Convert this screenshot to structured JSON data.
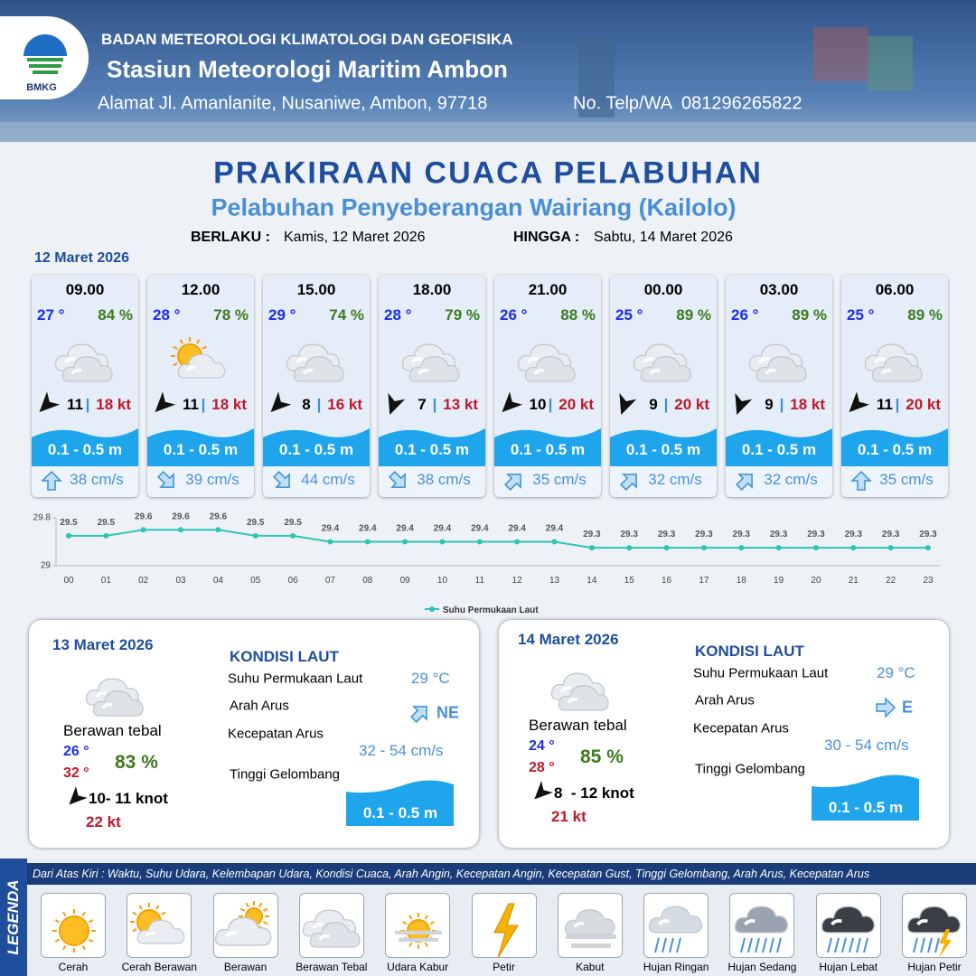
{
  "header": {
    "logo_text": "BMKG",
    "agency": "BADAN METEOROLOGI KLIMATOLOGI DAN GEOFISIKA",
    "station": "Stasiun Meteorologi Maritim Ambon",
    "address": "Alamat Jl. Amanlanite, Nusaniwe, Ambon, 97718",
    "phone": "No. Telp/WA  081296265822"
  },
  "title": "PRAKIRAAN CUACA PELABUHAN",
  "subtitle": "Pelabuhan Penyeberangan Wairiang (Kailolo)",
  "validity": {
    "from_label": "BERLAKU :",
    "from": "Kamis, 12 Maret 2026",
    "to_label": "HINGGA :",
    "to": "Sabtu, 14 Maret 2026"
  },
  "day1_date": "12 Maret 2026",
  "cards": [
    {
      "time": "09.00",
      "temp": "27 °",
      "humidity": "84 %",
      "wind": "11",
      "separator": "|",
      "gust": "18 kt",
      "wave": "0.1 - 0.5 m",
      "current": "38 cm/s"
    },
    {
      "time": "12.00",
      "temp": "28 °",
      "humidity": "78 %",
      "wind": "11",
      "separator": "|",
      "gust": "18 kt",
      "wave": "0.1 - 0.5 m",
      "current": "39 cm/s"
    },
    {
      "time": "15.00",
      "temp": "29 °",
      "humidity": "74 %",
      "wind": "8",
      "separator": "|",
      "gust": "16 kt",
      "wave": "0.1 - 0.5 m",
      "current": "44 cm/s"
    },
    {
      "time": "18.00",
      "temp": "28 °",
      "humidity": "79 %",
      "wind": "7",
      "separator": "|",
      "gust": "13 kt",
      "wave": "0.1 - 0.5 m",
      "current": "38 cm/s"
    },
    {
      "time": "21.00",
      "temp": "26 °",
      "humidity": "88 %",
      "wind": "10",
      "separator": "|",
      "gust": "20 kt",
      "wave": "0.1 - 0.5 m",
      "current": "35 cm/s"
    },
    {
      "time": "00.00",
      "temp": "25 °",
      "humidity": "89 %",
      "wind": "9",
      "separator": "|",
      "gust": "20 kt",
      "wave": "0.1 - 0.5 m",
      "current": "32 cm/s"
    },
    {
      "time": "03.00",
      "temp": "26 °",
      "humidity": "89 %",
      "wind": "9",
      "separator": "|",
      "gust": "18 kt",
      "wave": "0.1 - 0.5 m",
      "current": "32 cm/s"
    },
    {
      "time": "06.00",
      "temp": "25 °",
      "humidity": "89 %",
      "wind": "11",
      "separator": "|",
      "gust": "20 kt",
      "wave": "0.1 - 0.5 m",
      "current": "35 cm/s"
    }
  ],
  "sst_chart": {
    "type": "line",
    "categories": [
      "00",
      "01",
      "02",
      "03",
      "04",
      "05",
      "06",
      "07",
      "08",
      "09",
      "10",
      "11",
      "12",
      "13",
      "14",
      "15",
      "16",
      "17",
      "18",
      "19",
      "20",
      "21",
      "22",
      "23"
    ],
    "series": [
      {
        "name": "Suhu Permukaan Laut",
        "color": "#2ec4b6",
        "values": [
          29.5,
          29.5,
          29.6,
          29.6,
          29.6,
          29.5,
          29.5,
          29.4,
          29.4,
          29.4,
          29.4,
          29.4,
          29.4,
          29.4,
          29.3,
          29.3,
          29.3,
          29.3,
          29.3,
          29.3,
          29.3,
          29.3,
          29.3,
          29.3
        ]
      }
    ],
    "ylim": [
      29,
      29.8
    ],
    "yticks": [
      29,
      29.8
    ]
  },
  "days": [
    {
      "date": "13 Maret 2026",
      "condition": "Berawan tebal",
      "tmin": "26 °",
      "tmax": "32 °",
      "humidity": "83 %",
      "wind": "10- 11 knot",
      "gust": "22 kt",
      "sea_title": "KONDISI LAUT",
      "sst_label": "Suhu Permukaan Laut",
      "sst": "29 °C",
      "current_dir_label": "Arah Arus",
      "current_dir": "NE",
      "current_speed_label": "Kecepatan Arus",
      "current_speed": "32 - 54 cm/s",
      "wave_label": "Tinggi Gelombang",
      "wave": "0.1 - 0.5 m"
    },
    {
      "date": "14 Maret 2026",
      "condition": "Berawan tebal",
      "tmin": "24 °",
      "tmax": "28 °",
      "humidity": "85 %",
      "wind": "8  - 12 knot",
      "gust": "21 kt",
      "sea_title": "KONDISI LAUT",
      "sst_label": "Suhu Permukaan Laut",
      "sst": "29 °C",
      "current_dir_label": "Arah Arus",
      "current_dir": "E",
      "current_speed_label": "Kecepatan Arus",
      "current_speed": "30 - 54 cm/s",
      "wave_label": "Tinggi Gelombang",
      "wave": "0.1 - 0.5 m"
    }
  ],
  "legend": {
    "title": "LEGENDA",
    "description": "Dari Atas Kiri : Waktu, Suhu Udara, Kelembapan Udara, Kondisi Cuaca, Arah Angin, Kecepatan Angin, Kecepatan Gust, Tinggi Gelombang, Arah Arus, Kecepatan Arus",
    "items": [
      "Cerah",
      "Cerah Berawan",
      "Berawan",
      "Berawan Tebal",
      "Udara Kabur",
      "Petir",
      "Kabut",
      "Hujan Ringan",
      "Hujan Sedang",
      "Hujan Lebat",
      "Hujan Petir"
    ]
  }
}
